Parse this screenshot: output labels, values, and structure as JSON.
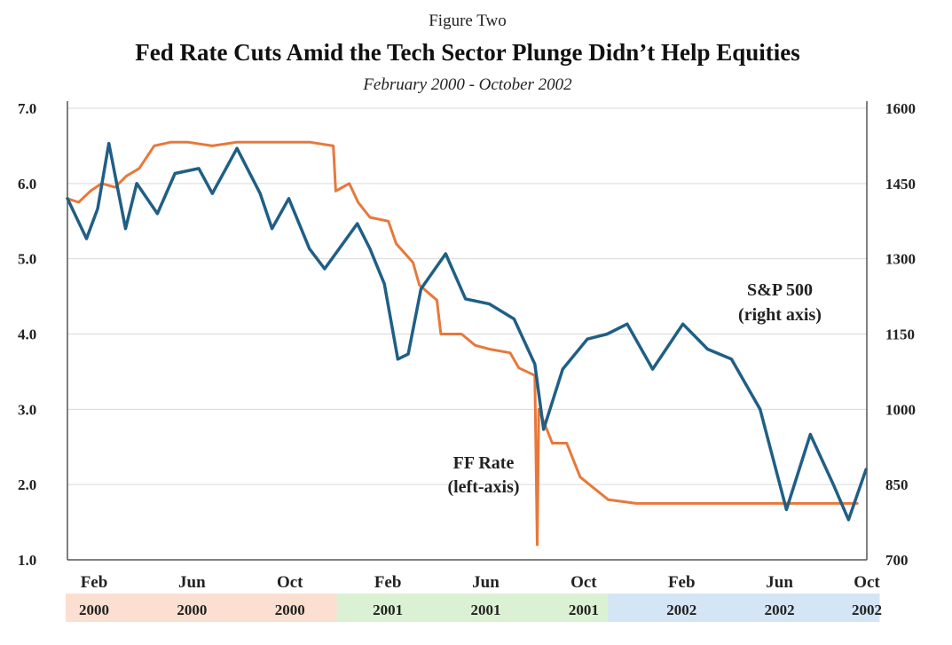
{
  "colors": {
    "ff_rate": "#e8783a",
    "sp500": "#1f5f86",
    "grid": "#d9d9d9",
    "axis": "#555555",
    "band_2000": "#fbdfd0",
    "band_2001": "#dbf1d3",
    "band_2002": "#d4e5f5"
  },
  "chart_data": {
    "type": "line",
    "figure_label": "Figure Two",
    "title": "Fed Rate Cuts Amid the Tech Sector Plunge Didn’t Help Equities",
    "subtitle": "February 2000 - October 2002",
    "x_range": [
      "2000-02",
      "2002-11"
    ],
    "x_ticks": [
      {
        "month": "Feb",
        "year": "2000",
        "date": "2000-02"
      },
      {
        "month": "Jun",
        "year": "2000",
        "date": "2000-06"
      },
      {
        "month": "Oct",
        "year": "2000",
        "date": "2000-10"
      },
      {
        "month": "Feb",
        "year": "2001",
        "date": "2001-02"
      },
      {
        "month": "Jun",
        "year": "2001",
        "date": "2001-06"
      },
      {
        "month": "Oct",
        "year": "2001",
        "date": "2001-10"
      },
      {
        "month": "Feb",
        "year": "2002",
        "date": "2002-02"
      },
      {
        "month": "Jun",
        "year": "2002",
        "date": "2002-06"
      },
      {
        "month": "Oct",
        "year": "2002",
        "date": "2002-10"
      }
    ],
    "y_left": {
      "ticks": [
        "7.0",
        "6.0",
        "5.0",
        "4.0",
        "3.0",
        "2.0",
        "1.0"
      ],
      "range": [
        1.0,
        7.0
      ]
    },
    "y_right": {
      "ticks": [
        "1600",
        "1450",
        "1300",
        "1150",
        "1000",
        "850",
        "700"
      ],
      "range": [
        700,
        1600
      ]
    },
    "grid": true,
    "series": [
      {
        "name": "FF Rate",
        "axis": "left",
        "annotation": [
          "FF Rate",
          "(left-axis)"
        ],
        "points": [
          [
            "2000-02-01",
            5.8
          ],
          [
            "2000-02-15",
            5.75
          ],
          [
            "2000-03-01",
            5.9
          ],
          [
            "2000-03-15",
            6.0
          ],
          [
            "2000-04-01",
            5.95
          ],
          [
            "2000-04-15",
            6.1
          ],
          [
            "2000-05-01",
            6.2
          ],
          [
            "2000-05-20",
            6.5
          ],
          [
            "2000-06-10",
            6.55
          ],
          [
            "2000-07-01",
            6.55
          ],
          [
            "2000-08-01",
            6.5
          ],
          [
            "2000-09-01",
            6.55
          ],
          [
            "2000-10-01",
            6.55
          ],
          [
            "2000-11-01",
            6.55
          ],
          [
            "2000-12-01",
            6.55
          ],
          [
            "2000-12-31",
            6.5
          ],
          [
            "2001-01-03",
            5.9
          ],
          [
            "2001-01-20",
            6.0
          ],
          [
            "2001-01-31",
            5.75
          ],
          [
            "2001-02-15",
            5.55
          ],
          [
            "2001-03-10",
            5.5
          ],
          [
            "2001-03-20",
            5.2
          ],
          [
            "2001-04-10",
            4.95
          ],
          [
            "2001-04-18",
            4.65
          ],
          [
            "2001-05-10",
            4.45
          ],
          [
            "2001-05-15",
            4.0
          ],
          [
            "2001-06-10",
            4.0
          ],
          [
            "2001-06-27",
            3.85
          ],
          [
            "2001-07-15",
            3.8
          ],
          [
            "2001-08-10",
            3.75
          ],
          [
            "2001-08-21",
            3.55
          ],
          [
            "2001-09-10",
            3.45
          ],
          [
            "2001-09-13",
            1.2
          ],
          [
            "2001-09-15",
            3.0
          ],
          [
            "2001-10-02",
            2.55
          ],
          [
            "2001-10-20",
            2.55
          ],
          [
            "2001-11-06",
            2.1
          ],
          [
            "2001-12-11",
            1.8
          ],
          [
            "2002-01-15",
            1.75
          ],
          [
            "2002-03-01",
            1.75
          ],
          [
            "2002-05-01",
            1.75
          ],
          [
            "2002-07-01",
            1.75
          ],
          [
            "2002-09-01",
            1.75
          ],
          [
            "2002-10-20",
            1.75
          ]
        ]
      },
      {
        "name": "S&P 500",
        "axis": "right",
        "annotation": [
          "S&P 500",
          "(right axis)"
        ],
        "points": [
          [
            "2000-02-01",
            1420
          ],
          [
            "2000-02-25",
            1340
          ],
          [
            "2000-03-10",
            1400
          ],
          [
            "2000-03-24",
            1530
          ],
          [
            "2000-04-14",
            1360
          ],
          [
            "2000-04-28",
            1450
          ],
          [
            "2000-05-24",
            1390
          ],
          [
            "2000-06-15",
            1470
          ],
          [
            "2000-07-15",
            1480
          ],
          [
            "2000-08-01",
            1430
          ],
          [
            "2000-09-01",
            1520
          ],
          [
            "2000-09-30",
            1430
          ],
          [
            "2000-10-15",
            1360
          ],
          [
            "2000-11-05",
            1420
          ],
          [
            "2000-12-01",
            1320
          ],
          [
            "2000-12-20",
            1280
          ],
          [
            "2001-01-30",
            1370
          ],
          [
            "2001-02-15",
            1320
          ],
          [
            "2001-03-05",
            1250
          ],
          [
            "2001-03-22",
            1100
          ],
          [
            "2001-04-04",
            1110
          ],
          [
            "2001-04-20",
            1240
          ],
          [
            "2001-05-21",
            1310
          ],
          [
            "2001-06-15",
            1220
          ],
          [
            "2001-07-15",
            1210
          ],
          [
            "2001-08-15",
            1180
          ],
          [
            "2001-09-10",
            1090
          ],
          [
            "2001-09-21",
            960
          ],
          [
            "2001-10-15",
            1080
          ],
          [
            "2001-11-15",
            1140
          ],
          [
            "2001-12-10",
            1150
          ],
          [
            "2002-01-04",
            1170
          ],
          [
            "2002-02-05",
            1080
          ],
          [
            "2002-03-15",
            1170
          ],
          [
            "2002-04-15",
            1120
          ],
          [
            "2002-05-15",
            1100
          ],
          [
            "2002-06-20",
            1000
          ],
          [
            "2002-07-23",
            800
          ],
          [
            "2002-08-22",
            950
          ],
          [
            "2002-09-20",
            850
          ],
          [
            "2002-10-09",
            780
          ],
          [
            "2002-10-31",
            880
          ]
        ]
      }
    ]
  }
}
